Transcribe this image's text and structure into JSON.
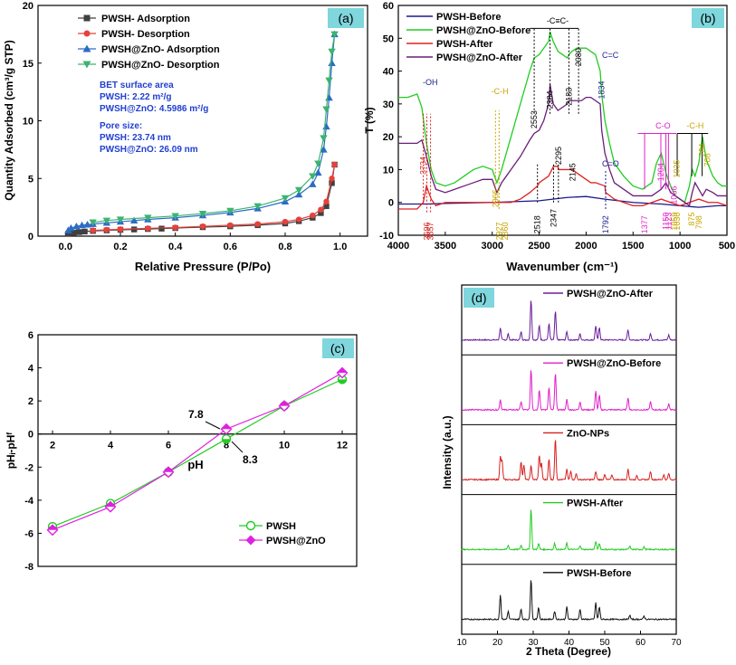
{
  "chart_data": [
    {
      "id": "a",
      "type": "line",
      "panel_label": "(a)",
      "xlabel": "Relative Pressure (P/Po)",
      "ylabel": "Quantity Adsorbed (cm³/g STP)",
      "xlim": [
        -0.1,
        1.1
      ],
      "ylim": [
        0,
        20
      ],
      "xticks": [
        "0.0",
        "0.2",
        "0.4",
        "0.6",
        "0.8",
        "1.0"
      ],
      "yticks": [
        "0",
        "5",
        "10",
        "15",
        "20"
      ],
      "series": [
        {
          "name": "PWSH- Adsorption",
          "color": "#404040",
          "marker": "square",
          "x": [
            0.01,
            0.03,
            0.05,
            0.07,
            0.1,
            0.15,
            0.2,
            0.25,
            0.3,
            0.35,
            0.4,
            0.5,
            0.6,
            0.7,
            0.8,
            0.85,
            0.9,
            0.93,
            0.95,
            0.97,
            0.98
          ],
          "y": [
            0.2,
            0.3,
            0.35,
            0.4,
            0.45,
            0.5,
            0.55,
            0.58,
            0.62,
            0.65,
            0.7,
            0.78,
            0.85,
            0.95,
            1.1,
            1.3,
            1.6,
            2.0,
            2.6,
            4.6,
            6.2
          ]
        },
        {
          "name": "PWSH- Desorption",
          "color": "#e8413c",
          "marker": "circle",
          "x": [
            0.98,
            0.97,
            0.95,
            0.93,
            0.9,
            0.85,
            0.8,
            0.7,
            0.6,
            0.5,
            0.4,
            0.3,
            0.2,
            0.15,
            0.1
          ],
          "y": [
            6.2,
            5.0,
            3.0,
            2.3,
            1.8,
            1.45,
            1.25,
            1.05,
            0.95,
            0.85,
            0.75,
            0.68,
            0.6,
            0.55,
            0.5
          ]
        },
        {
          "name": "PWSH@ZnO- Adsorption",
          "color": "#2b6cc4",
          "marker": "triangle-up",
          "x": [
            0.01,
            0.02,
            0.04,
            0.06,
            0.08,
            0.1,
            0.15,
            0.2,
            0.25,
            0.3,
            0.4,
            0.5,
            0.6,
            0.7,
            0.8,
            0.85,
            0.9,
            0.92,
            0.94,
            0.95,
            0.96,
            0.97,
            0.98
          ],
          "y": [
            0.5,
            0.7,
            0.85,
            0.95,
            1.0,
            1.05,
            1.15,
            1.25,
            1.35,
            1.45,
            1.6,
            1.8,
            2.05,
            2.4,
            3.0,
            3.6,
            4.5,
            5.5,
            7.5,
            9.5,
            12.0,
            15.0,
            17.5
          ]
        },
        {
          "name": "PWSH@ZnO- Desorption",
          "color": "#3cb371",
          "marker": "triangle-down",
          "x": [
            0.98,
            0.97,
            0.96,
            0.95,
            0.94,
            0.92,
            0.9,
            0.85,
            0.8,
            0.7,
            0.6,
            0.5,
            0.4,
            0.3,
            0.2,
            0.15,
            0.1
          ],
          "y": [
            17.5,
            16.0,
            13.5,
            11.0,
            8.5,
            6.3,
            5.2,
            4.0,
            3.3,
            2.6,
            2.2,
            1.95,
            1.75,
            1.6,
            1.45,
            1.35,
            1.2
          ]
        }
      ],
      "legend_position": "top-left",
      "annotations": {
        "bet_title": "BET surface area",
        "bet_pwsh": "PWSH: 2.22 m²/g",
        "bet_znO": "PWSH@ZnO: 4.5986 m²/g",
        "pore_title": "Pore size:",
        "pore_pwsh": "PWSH: 23.74 nm",
        "pore_znO": "PWSH@ZnO: 26.09 nm"
      }
    },
    {
      "id": "b",
      "type": "line",
      "panel_label": "(b)",
      "xlabel": "Wavenumber (cm⁻¹)",
      "ylabel": "T (%)",
      "xlim": [
        4000,
        500
      ],
      "ylim": [
        -10,
        60
      ],
      "xticks": [
        "4000",
        "3500",
        "3000",
        "2500",
        "2000",
        "1500",
        "1000",
        "500"
      ],
      "yticks": [
        "-10",
        "0",
        "10",
        "20",
        "30",
        "40",
        "50",
        "60"
      ],
      "series": [
        {
          "name": "PWSH-Before",
          "color": "#1a1a8c",
          "x": [
            4000,
            3700,
            3500,
            3000,
            2500,
            2200,
            2000,
            1800,
            1500,
            1200,
            1000,
            800,
            600,
            500
          ],
          "y": [
            -0.5,
            -0.5,
            -0.3,
            0,
            0.5,
            1.5,
            1.8,
            1.0,
            0,
            -0.5,
            -1,
            -1.5,
            -1,
            -1
          ]
        },
        {
          "name": "PWSH@ZnO-Before",
          "color": "#22cc22",
          "x": [
            4000,
            3900,
            3800,
            3750,
            3700,
            3650,
            3600,
            3500,
            3400,
            3300,
            3200,
            3100,
            3000,
            2950,
            2900,
            2800,
            2700,
            2600,
            2553,
            2500,
            2450,
            2400,
            2384,
            2350,
            2300,
            2250,
            2200,
            2183,
            2150,
            2100,
            2050,
            2000,
            1950,
            1900,
            1850,
            1834,
            1800,
            1750,
            1700,
            1600,
            1500,
            1400,
            1300,
            1250,
            1200,
            1150,
            1100,
            1050,
            1000,
            950,
            900,
            870,
            840,
            800,
            760,
            720,
            650,
            600,
            550,
            500
          ],
          "y": [
            32,
            32,
            33,
            29,
            18,
            10,
            6,
            5,
            6,
            8,
            10,
            11,
            10,
            6,
            10,
            20,
            30,
            40,
            44,
            45,
            47,
            49,
            52,
            49,
            46,
            45,
            44,
            45,
            46,
            47,
            47,
            47,
            46,
            45,
            40,
            33,
            25,
            18,
            12,
            8,
            5,
            4,
            6,
            12,
            15,
            9,
            5,
            2,
            1,
            0,
            5,
            10,
            8,
            12,
            20,
            13,
            8,
            6,
            5,
            5
          ]
        },
        {
          "name": "PWSH-After",
          "color": "#e02020",
          "x": [
            4000,
            3800,
            3734,
            3700,
            3650,
            3600,
            3500,
            3400,
            3300,
            3200,
            3100,
            3000,
            2900,
            2800,
            2700,
            2600,
            2518,
            2500,
            2400,
            2347,
            2300,
            2295,
            2250,
            2200,
            2145,
            2100,
            2050,
            2000,
            1950,
            1900,
            1800,
            1792,
            1700,
            1600,
            1500,
            1400,
            1300,
            1200,
            1100,
            1000,
            900,
            800,
            700,
            600,
            500
          ],
          "y": [
            -2,
            -2,
            0,
            5,
            1,
            -1,
            0,
            0,
            0,
            0,
            0,
            0,
            0,
            0,
            1,
            3,
            5,
            6,
            8,
            11,
            11,
            10,
            10,
            10,
            10,
            9,
            8,
            7,
            6,
            6,
            5,
            3,
            1,
            0,
            -1,
            -1,
            0,
            1,
            0,
            -1,
            0,
            1,
            0,
            0,
            -1
          ]
        },
        {
          "name": "PWSH@ZnO-After",
          "color": "#6a1e7a",
          "x": [
            4000,
            3800,
            3750,
            3700,
            3650,
            3600,
            3500,
            3400,
            3300,
            3200,
            3100,
            3000,
            2950,
            2900,
            2850,
            2800,
            2700,
            2600,
            2553,
            2500,
            2450,
            2400,
            2384,
            2350,
            2300,
            2250,
            2200,
            2183,
            2150,
            2100,
            2050,
            2000,
            1950,
            1900,
            1850,
            1834,
            1800,
            1750,
            1700,
            1600,
            1500,
            1400,
            1300,
            1200,
            1150,
            1100,
            1000,
            950,
            900,
            870,
            840,
            800,
            760,
            720,
            650,
            600,
            550,
            500
          ],
          "y": [
            18,
            18,
            19,
            14,
            8,
            4,
            3,
            4,
            5,
            6,
            7,
            7,
            3,
            6,
            8,
            10,
            14,
            19,
            21,
            22,
            25,
            30,
            36,
            30,
            28,
            29,
            30,
            31,
            31,
            31,
            31,
            32,
            32,
            31,
            30,
            22,
            15,
            10,
            6,
            4,
            2,
            2,
            2,
            4,
            6,
            3,
            1,
            0,
            -1,
            3,
            6,
            4,
            2,
            4,
            3,
            2,
            2,
            2
          ]
        }
      ],
      "legend_position": "top-left",
      "annotations": {
        "oh": "-OH",
        "ch_stretch": "-C-H",
        "ctc": "-C≡C-",
        "cc": "C=C",
        "co_bond": "C=O",
        "c_o": "C-O",
        "ch_bend": "-C-H",
        "peaks": [
          "3734",
          "3696",
          "3657",
          "2965",
          "2927",
          "2860",
          "2553",
          "2518",
          "2384",
          "2347",
          "2295",
          "2183",
          "2145",
          "2080",
          "1834",
          "1792",
          "1377",
          "1204",
          "1150",
          "1123",
          "1066",
          "1059",
          "1035",
          "1030",
          "875",
          "798",
          "764",
          "708"
        ]
      }
    },
    {
      "id": "c",
      "type": "line",
      "panel_label": "(c)",
      "xlabel": "pH",
      "ylabel": "pHᵢ-pHᶠ",
      "xlim": [
        1.5,
        12.5
      ],
      "ylim": [
        -8,
        6
      ],
      "xticks": [
        "2",
        "4",
        "6",
        "8",
        "10",
        "12"
      ],
      "yticks": [
        "-8",
        "-6",
        "-4",
        "-2",
        "0",
        "2",
        "4",
        "6"
      ],
      "series": [
        {
          "name": "PWSH",
          "color": "#22cc22",
          "marker": "circle",
          "x": [
            2,
            4,
            6,
            8,
            10,
            12
          ],
          "y": [
            -5.6,
            -4.2,
            -2.3,
            -0.3,
            1.7,
            3.3
          ]
        },
        {
          "name": "PWSH@ZnO",
          "color": "#e020e0",
          "marker": "diamond",
          "x": [
            2,
            4,
            6,
            8,
            10,
            12
          ],
          "y": [
            -5.8,
            -4.4,
            -2.3,
            0.3,
            1.7,
            3.7
          ]
        }
      ],
      "legend_position": "bottom-right",
      "annotations": {
        "pzc_1": "7.8",
        "pzc_2": "8.3"
      }
    },
    {
      "id": "d",
      "type": "line",
      "panel_label": "(d)",
      "xlabel": "2 Theta (Degree)",
      "ylabel": "Intensity (a.u.)",
      "xlim": [
        10,
        70
      ],
      "xticks": [
        "10",
        "20",
        "30",
        "40",
        "50",
        "60",
        "70"
      ],
      "series": [
        {
          "name": "PWSH@ZnO-After",
          "color": "#6a1e9a",
          "peaks_x": [
            20.8,
            23.0,
            26.6,
            29.4,
            31.7,
            34.4,
            36.2,
            39.4,
            43.1,
            47.5,
            48.5,
            56.5,
            62.8,
            67.9
          ],
          "peaks_y": [
            0.3,
            0.15,
            0.2,
            1.0,
            0.35,
            0.4,
            0.7,
            0.2,
            0.15,
            0.35,
            0.3,
            0.25,
            0.15,
            0.12
          ]
        },
        {
          "name": "PWSH@ZnO-Before",
          "color": "#e020c8",
          "peaks_x": [
            20.8,
            26.6,
            29.4,
            31.7,
            34.4,
            36.2,
            39.4,
            43.1,
            47.5,
            48.5,
            56.5,
            62.8,
            67.9
          ],
          "peaks_y": [
            0.25,
            0.2,
            1.0,
            0.5,
            0.55,
            0.9,
            0.25,
            0.2,
            0.45,
            0.35,
            0.3,
            0.2,
            0.15
          ]
        },
        {
          "name": "ZnO-NPs",
          "color": "#d62020",
          "peaks_x": [
            20.8,
            21.3,
            26.6,
            27.4,
            29.4,
            31.7,
            32.3,
            34.4,
            36.2,
            39.4,
            40.5,
            42.0,
            47.5,
            50.0,
            52.0,
            56.5,
            59.0,
            62.8,
            66.5,
            67.9
          ],
          "peaks_y": [
            0.55,
            0.45,
            0.45,
            0.35,
            0.35,
            0.6,
            0.4,
            0.5,
            1.0,
            0.25,
            0.2,
            0.15,
            0.2,
            0.12,
            0.12,
            0.25,
            0.1,
            0.2,
            0.12,
            0.15
          ]
        },
        {
          "name": "PWSH-After",
          "color": "#22cc22",
          "peaks_x": [
            23.0,
            26.6,
            29.4,
            31.5,
            36.0,
            39.4,
            43.1,
            47.5,
            48.5,
            57.0,
            61.0
          ],
          "peaks_y": [
            0.1,
            0.1,
            1.0,
            0.15,
            0.15,
            0.15,
            0.1,
            0.2,
            0.15,
            0.08,
            0.06
          ]
        },
        {
          "name": "PWSH-Before",
          "color": "#111111",
          "peaks_x": [
            20.8,
            23.0,
            26.6,
            29.4,
            31.5,
            36.0,
            39.4,
            43.1,
            47.5,
            48.5,
            57.0,
            61.0
          ],
          "peaks_y": [
            0.6,
            0.2,
            0.25,
            1.0,
            0.3,
            0.2,
            0.3,
            0.25,
            0.4,
            0.3,
            0.1,
            0.08
          ]
        }
      ]
    }
  ]
}
